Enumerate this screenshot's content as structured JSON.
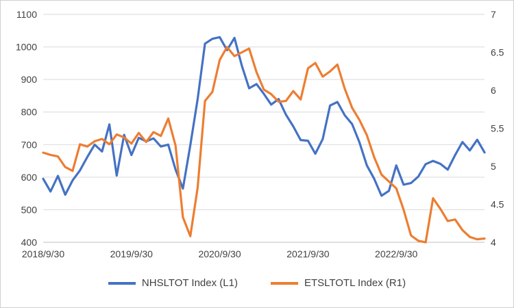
{
  "chart_data": {
    "type": "line",
    "title": "",
    "n_points": 61,
    "x_ticks": [
      {
        "label": "2018/9/30",
        "month_index": 0
      },
      {
        "label": "2019/9/30",
        "month_index": 12
      },
      {
        "label": "2020/9/30",
        "month_index": 24
      },
      {
        "label": "2021/9/30",
        "month_index": 36
      },
      {
        "label": "2022/9/30",
        "month_index": 48
      }
    ],
    "left_axis": {
      "min": 400,
      "max": 1100,
      "tick_labels": [
        "1100",
        "1000",
        "900",
        "800",
        "700",
        "600",
        "500",
        "400"
      ]
    },
    "right_axis": {
      "min": 4,
      "max": 7,
      "tick_labels": [
        "7",
        "6.5",
        "6",
        "5.5",
        "5",
        "4.5",
        "4"
      ]
    },
    "grid": true,
    "legend_position": "bottom",
    "colors": {
      "grid": "#d9d9d9",
      "axis": "#bfbfbf",
      "text": "#404040"
    },
    "series": [
      {
        "name": "NHSLTOT Index  (L1)",
        "axis": "left",
        "color": "#4472C4",
        "values": [
          595,
          556,
          604,
          546,
          590,
          621,
          662,
          700,
          679,
          762,
          605,
          730,
          668,
          721,
          710,
          719,
          694,
          700,
          623,
          565,
          698,
          840,
          1010,
          1025,
          1030,
          990,
          1028,
          943,
          873,
          886,
          856,
          823,
          840,
          792,
          756,
          714,
          712,
          672,
          717,
          820,
          831,
          790,
          763,
          707,
          636,
          595,
          543,
          558,
          636,
          577,
          582,
          602,
          640,
          650,
          641,
          623,
          668,
          708,
          682,
          715,
          676
        ]
      },
      {
        "name": "ETSLTOTL Index  (R1)",
        "axis": "right",
        "color": "#ED7D31",
        "values": [
          5.18,
          5.15,
          5.13,
          4.99,
          4.94,
          5.29,
          5.26,
          5.33,
          5.36,
          5.29,
          5.42,
          5.38,
          5.3,
          5.44,
          5.32,
          5.45,
          5.4,
          5.63,
          5.27,
          4.33,
          4.08,
          4.72,
          5.86,
          5.98,
          6.4,
          6.57,
          6.45,
          6.5,
          6.55,
          6.24,
          6.01,
          5.95,
          5.85,
          5.86,
          5.99,
          5.88,
          6.29,
          6.36,
          6.18,
          6.25,
          6.34,
          6.02,
          5.77,
          5.61,
          5.41,
          5.12,
          4.89,
          4.8,
          4.71,
          4.43,
          4.09,
          4.02,
          4.0,
          4.58,
          4.44,
          4.28,
          4.3,
          4.16,
          4.07,
          4.04,
          4.05
        ]
      }
    ]
  }
}
